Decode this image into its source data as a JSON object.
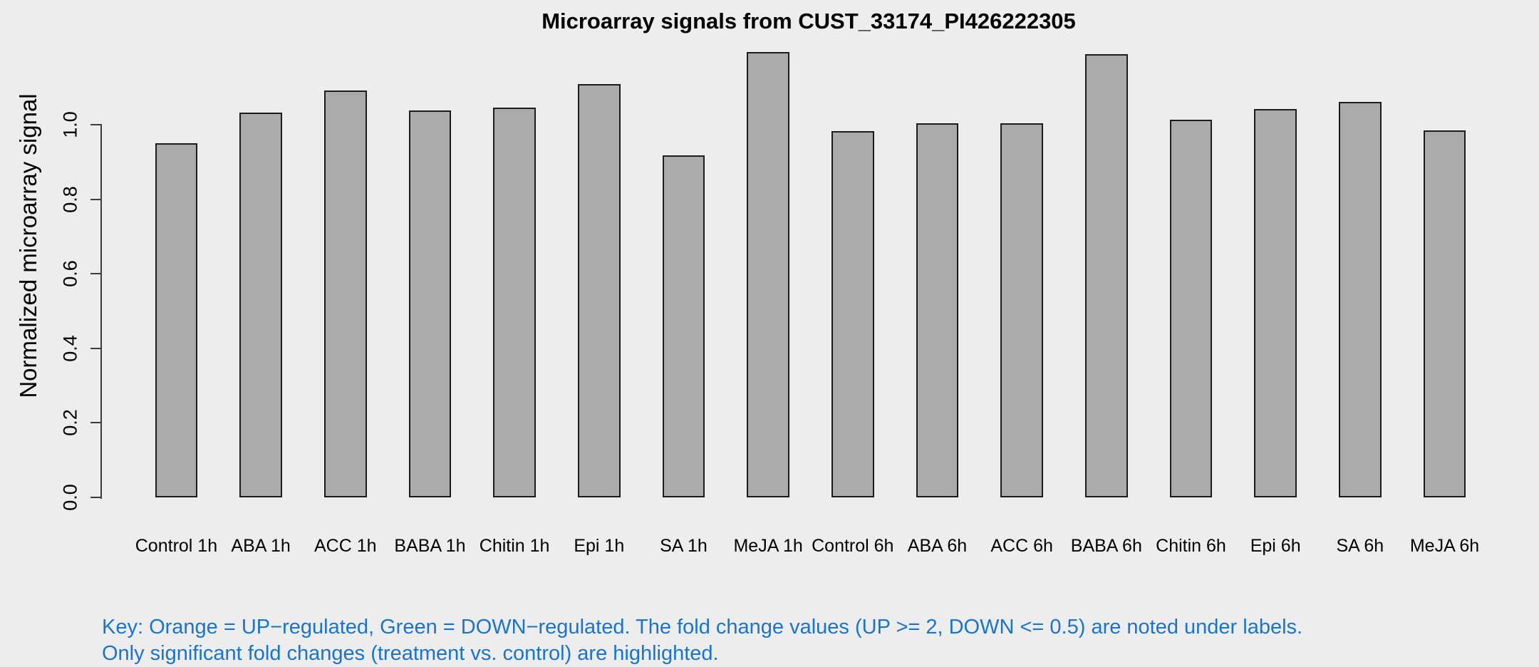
{
  "page": {
    "background_color": "#EDEDED"
  },
  "chart_data": {
    "type": "bar",
    "title": "Microarray signals from CUST_33174_PI426222305",
    "ylabel": "Normalized microarray signal",
    "xlabel": "",
    "categories": [
      "Control 1h",
      "ABA 1h",
      "ACC 1h",
      "BABA 1h",
      "Chitin 1h",
      "Epi 1h",
      "SA 1h",
      "MeJA 1h",
      "Control 6h",
      "ABA 6h",
      "ACC 6h",
      "BABA 6h",
      "Chitin 6h",
      "Epi 6h",
      "SA 6h",
      "MeJA 6h"
    ],
    "values": [
      0.951,
      1.033,
      1.092,
      1.038,
      1.046,
      1.109,
      0.918,
      1.195,
      0.983,
      1.004,
      1.004,
      1.19,
      1.014,
      1.043,
      1.062,
      0.985
    ],
    "yticks": [
      0,
      0.2,
      0.4,
      0.6,
      0.8,
      1.0
    ],
    "ytick_labels": [
      "0.0",
      "0.2",
      "0.4",
      "0.6",
      "0.8",
      "1.0"
    ],
    "ylim": [
      0,
      1.22
    ],
    "grid": false,
    "legend_position": "none",
    "bar_fill_color": "#ABABAB",
    "bar_border_color": "#1C1C1C",
    "axis_color": "#3C3C3C",
    "text_color": "#000000"
  },
  "footer": {
    "line1": "Key: Orange = UP−regulated, Green = DOWN−regulated. The fold change values (UP >= 2, DOWN <= 0.5) are noted under labels.",
    "line2": "Only significant fold changes (treatment vs. control) are highlighted.",
    "text_color": "#1874CD"
  }
}
